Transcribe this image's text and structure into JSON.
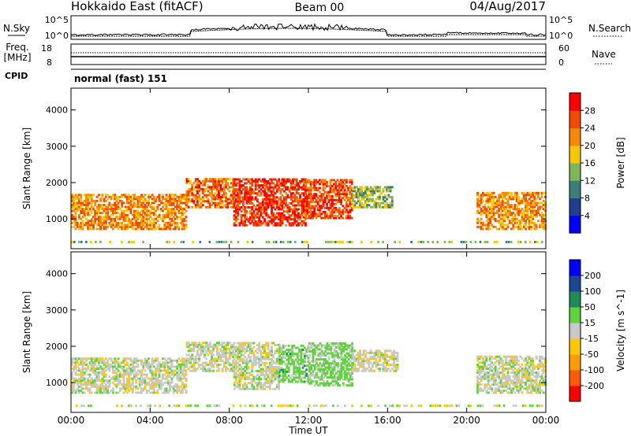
{
  "header": {
    "title": "Hokkaido East (fitACF)",
    "beam": "Beam 00",
    "date": "04/Aug/2017"
  },
  "top_panel": {
    "left_label": "N.Sky",
    "right_label": "N.Search",
    "left_ticks": [
      "10^5",
      "10^0"
    ],
    "right_ticks": [
      "10^5",
      "10^0"
    ]
  },
  "freq_panel": {
    "left_label_line1": "Freq.",
    "left_label_line2": "[MHz]",
    "right_label": "Nave",
    "left_ticks": [
      "18",
      "8"
    ],
    "right_ticks": [
      "60",
      "0"
    ]
  },
  "cpid_panel": {
    "label": "CPID",
    "text": "normal (fast) 151"
  },
  "x_axis": {
    "label": "Time UT",
    "ticks": [
      "00:00",
      "04:00",
      "08:00",
      "12:00",
      "16:00",
      "20:00",
      "00:00"
    ]
  },
  "colors": {
    "power": [
      "#0000ff",
      "#1e3f8c",
      "#3c7f78",
      "#7fb65a",
      "#f5c800",
      "#f58a00",
      "#f24a00",
      "#ff0000"
    ],
    "velocity": [
      "#ff0000",
      "#ff5a00",
      "#ff9c00",
      "#ffc800",
      "#c8c8c8",
      "#5fd23c",
      "#1e8c5a",
      "#1e4696",
      "#0000ff"
    ]
  },
  "chart_data": [
    {
      "type": "heatmap",
      "name": "Power",
      "ylabel": "Slant Range [km]",
      "xlabel": "",
      "xlim_hours": [
        0,
        24
      ],
      "ylim_km": [
        180,
        4600
      ],
      "yticks": [
        "1000",
        "2000",
        "3000",
        "4000"
      ],
      "colorbar": {
        "label": "Power [dB]",
        "ticks": [
          "4",
          "8",
          "12",
          "16",
          "20",
          "24",
          "28"
        ],
        "range": [
          0,
          32
        ]
      },
      "echo_regions": [
        {
          "t": [
            0.0,
            5.8
          ],
          "r": [
            700,
            1650
          ],
          "value": 22
        },
        {
          "t": [
            5.8,
            8.2
          ],
          "r": [
            1300,
            2100
          ],
          "value": 24
        },
        {
          "t": [
            8.2,
            11.8
          ],
          "r": [
            800,
            2100
          ],
          "value": 28
        },
        {
          "t": [
            11.8,
            14.2
          ],
          "r": [
            1000,
            2100
          ],
          "value": 26
        },
        {
          "t": [
            14.2,
            16.2
          ],
          "r": [
            1300,
            1900
          ],
          "value": 14
        },
        {
          "t": [
            20.5,
            24.0
          ],
          "r": [
            700,
            1700
          ],
          "value": 22
        }
      ]
    },
    {
      "type": "heatmap",
      "name": "Velocity",
      "ylabel": "Slant Range [km]",
      "xlabel": "Time UT",
      "xlim_hours": [
        0,
        24
      ],
      "ylim_km": [
        180,
        4600
      ],
      "yticks": [
        "1000",
        "2000",
        "3000",
        "4000"
      ],
      "colorbar": {
        "label": "Velocity [m s^-1]",
        "ticks": [
          "-200",
          "-100",
          "-50",
          "-15",
          "15",
          "50",
          "100",
          "200"
        ],
        "range": [
          -250,
          250
        ]
      },
      "echo_regions": [
        {
          "t": [
            0.0,
            5.8
          ],
          "r": [
            700,
            1650
          ],
          "value": 0
        },
        {
          "t": [
            5.8,
            8.2
          ],
          "r": [
            1300,
            2100
          ],
          "value": 0
        },
        {
          "t": [
            8.2,
            10.5
          ],
          "r": [
            800,
            2100
          ],
          "value": 0
        },
        {
          "t": [
            10.5,
            12.0
          ],
          "r": [
            1000,
            2000
          ],
          "value": 30
        },
        {
          "t": [
            12.0,
            14.2
          ],
          "r": [
            900,
            2100
          ],
          "value": 25
        },
        {
          "t": [
            14.2,
            16.5
          ],
          "r": [
            1300,
            1900
          ],
          "value": 0
        },
        {
          "t": [
            20.5,
            24.0
          ],
          "r": [
            700,
            1700
          ],
          "value": 0
        }
      ]
    }
  ]
}
